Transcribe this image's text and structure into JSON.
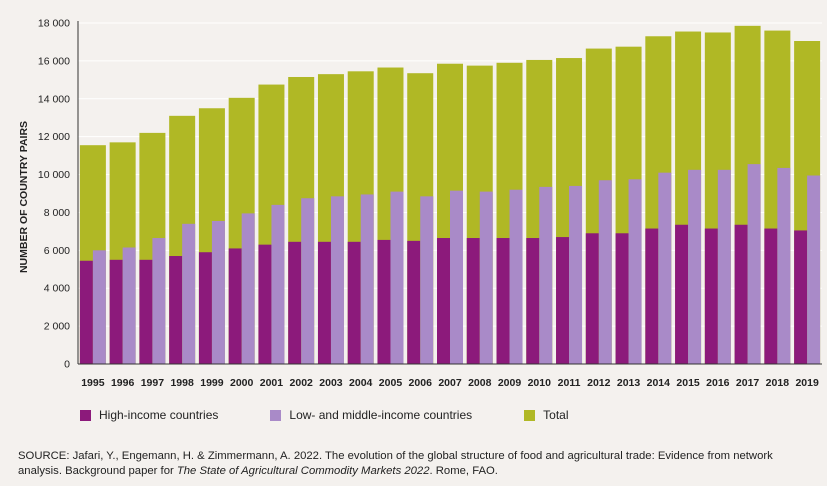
{
  "colors": {
    "high_income": "#8c1a7b",
    "low_middle_income": "#a98ac8",
    "total": "#b0b825",
    "background": "#f4f1ee",
    "gridline": "#ffffff",
    "axis": "#333333"
  },
  "chart_data": {
    "type": "bar",
    "title": "",
    "xlabel": "",
    "ylabel": "NUMBER OF COUNTRY PAIRS",
    "ylim": [
      0,
      18000
    ],
    "yticks": [
      0,
      2000,
      4000,
      6000,
      8000,
      10000,
      12000,
      14000,
      16000,
      18000
    ],
    "ytick_labels": [
      "0",
      "2 000",
      "4 000",
      "6 000",
      "8 000",
      "10 000",
      "12 000",
      "14 000",
      "16 000",
      "18 000"
    ],
    "grid": true,
    "legend_position": "bottom",
    "categories": [
      "1995",
      "1996",
      "1997",
      "1998",
      "1999",
      "2000",
      "2001",
      "2002",
      "2003",
      "2004",
      "2005",
      "2006",
      "2007",
      "2008",
      "2009",
      "2010",
      "2011",
      "2012",
      "2013",
      "2014",
      "2015",
      "2016",
      "2017",
      "2018",
      "2019"
    ],
    "series": [
      {
        "name": "Total",
        "color_key": "total",
        "values": [
          11550,
          11700,
          12200,
          13100,
          13500,
          14050,
          14750,
          15150,
          15300,
          15450,
          15650,
          15350,
          15850,
          15750,
          15900,
          16050,
          16150,
          16650,
          16750,
          17300,
          17550,
          17500,
          17850,
          17600,
          17050
        ]
      },
      {
        "name": "High-income countries",
        "color_key": "high_income",
        "values": [
          5450,
          5500,
          5500,
          5700,
          5900,
          6100,
          6300,
          6450,
          6450,
          6450,
          6550,
          6500,
          6650,
          6650,
          6650,
          6650,
          6700,
          6900,
          6900,
          7150,
          7350,
          7150,
          7350,
          7150,
          7050
        ]
      },
      {
        "name": "Low- and middle-income countries",
        "color_key": "low_middle_income",
        "values": [
          6000,
          6150,
          6650,
          7400,
          7550,
          7950,
          8400,
          8750,
          8850,
          8950,
          9100,
          8850,
          9150,
          9100,
          9200,
          9350,
          9400,
          9700,
          9750,
          10100,
          10250,
          10250,
          10550,
          10350,
          9950
        ]
      }
    ]
  },
  "legend": {
    "high_income": "High-income countries",
    "low_middle_income": "Low- and middle-income countries",
    "total": "Total"
  },
  "source": {
    "prefix": "SOURCE: Jafari, Y., Engemann, H. & Zimmermann, A. 2022. The evolution of the global structure of food and agricultural trade: Evidence from network analysis. Background paper for ",
    "italic": "The State of Agricultural Commodity Markets 2022",
    "suffix": ". Rome, FAO."
  }
}
